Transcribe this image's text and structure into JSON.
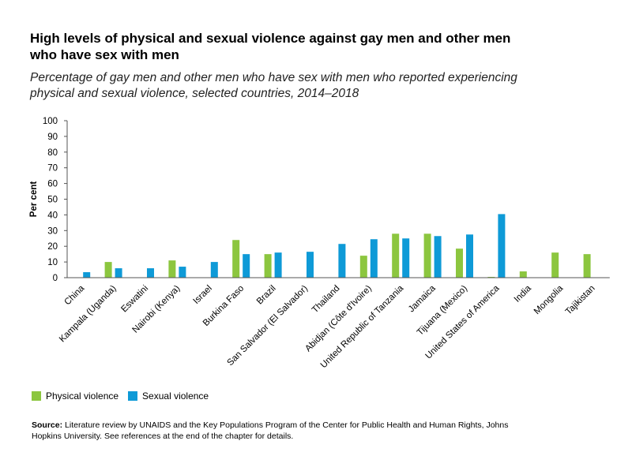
{
  "title": "High levels of physical and sexual violence against gay men and other men who have sex with men",
  "subtitle": "Percentage of gay men and other men who have sex with men who reported experiencing physical and sexual violence, selected countries, 2014–2018",
  "legend": {
    "physical": "Physical violence",
    "sexual": "Sexual violence"
  },
  "source": {
    "label": "Source:",
    "text": "Literature review by UNAIDS and the Key Populations Program of the Center for Public Health and Human Rights, Johns Hopkins University. See references at the end of the chapter for details."
  },
  "colors": {
    "physical": "#8cc63f",
    "sexual": "#0e9ad7"
  },
  "chart_data": {
    "type": "bar",
    "ylabel": "Per cent",
    "ylim": [
      0,
      100
    ],
    "yticks": [
      0,
      10,
      20,
      30,
      40,
      50,
      60,
      70,
      80,
      90,
      100
    ],
    "categories": [
      "China",
      "Kampala (Uganda)",
      "Eswatini",
      "Nairobi (Kenya)",
      "Israel",
      "Burkina Faso",
      "Brazil",
      "San Salvador (El Salvador)",
      "Thailand",
      "Abidjan (Côte d'Ivoire)",
      "United Republic of Tanzania",
      "Jamaica",
      "Tijuana (Mexico)",
      "United States of America",
      "India",
      "Mongolia",
      "Tajikistan"
    ],
    "series": [
      {
        "name": "Physical violence",
        "values": [
          null,
          10,
          null,
          11,
          null,
          24,
          15,
          null,
          null,
          14,
          28,
          28,
          18.5,
          0.5,
          4,
          16,
          15
        ]
      },
      {
        "name": "Sexual violence",
        "values": [
          3.5,
          6,
          6,
          7,
          10,
          15,
          16,
          16.5,
          21.5,
          24.5,
          25,
          26.5,
          27.5,
          40.5,
          null,
          null,
          null
        ]
      }
    ]
  }
}
